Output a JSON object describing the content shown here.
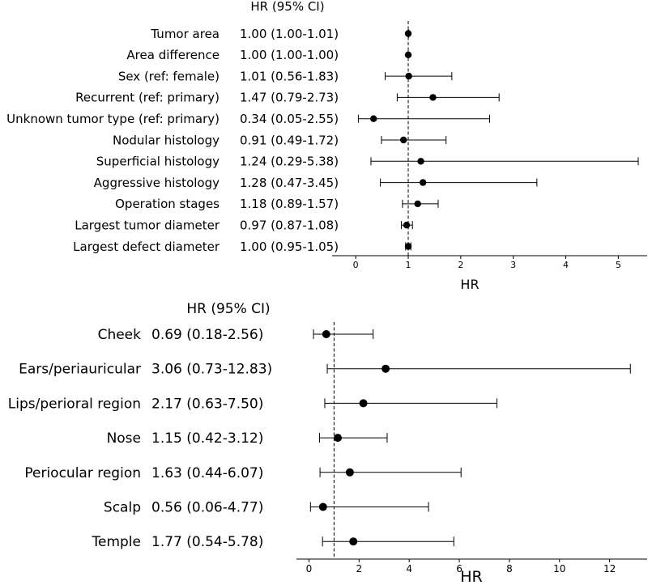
{
  "chart_data": [
    {
      "type": "forest",
      "title": "HR (95% CI)",
      "xlabel": "HR",
      "xlim": [
        -0.45,
        5.55
      ],
      "xticks": [
        0,
        1,
        2,
        3,
        4,
        5
      ],
      "reference_line": 1,
      "rows": [
        {
          "label": "Tumor area",
          "hr_text": "1.00 (1.00-1.01)",
          "hr": 1.0,
          "lo": 1.0,
          "hi": 1.01
        },
        {
          "label": "Area difference",
          "hr_text": "1.00 (1.00-1.00)",
          "hr": 1.0,
          "lo": 1.0,
          "hi": 1.0
        },
        {
          "label": "Sex (ref: female)",
          "hr_text": "1.01 (0.56-1.83)",
          "hr": 1.01,
          "lo": 0.56,
          "hi": 1.83
        },
        {
          "label": "Recurrent (ref: primary)",
          "hr_text": "1.47 (0.79-2.73)",
          "hr": 1.47,
          "lo": 0.79,
          "hi": 2.73
        },
        {
          "label": "Unknown tumor type (ref: primary)",
          "hr_text": "0.34 (0.05-2.55)",
          "hr": 0.34,
          "lo": 0.05,
          "hi": 2.55
        },
        {
          "label": "Nodular histology",
          "hr_text": "0.91 (0.49-1.72)",
          "hr": 0.91,
          "lo": 0.49,
          "hi": 1.72
        },
        {
          "label": "Superficial histology",
          "hr_text": "1.24 (0.29-5.38)",
          "hr": 1.24,
          "lo": 0.29,
          "hi": 5.38
        },
        {
          "label": "Aggressive histology",
          "hr_text": "1.28 (0.47-3.45)",
          "hr": 1.28,
          "lo": 0.47,
          "hi": 3.45
        },
        {
          "label": "Operation stages",
          "hr_text": "1.18 (0.89-1.57)",
          "hr": 1.18,
          "lo": 0.89,
          "hi": 1.57
        },
        {
          "label": "Largest tumor diameter",
          "hr_text": "0.97 (0.87-1.08)",
          "hr": 0.97,
          "lo": 0.87,
          "hi": 1.08
        },
        {
          "label": "Largest defect diameter",
          "hr_text": "1.00 (0.95-1.05)",
          "hr": 1.0,
          "lo": 0.95,
          "hi": 1.05
        }
      ]
    },
    {
      "type": "forest",
      "title": "HR (95% CI)",
      "xlabel": "HR",
      "xlim": [
        -0.5,
        13.5
      ],
      "xticks": [
        0,
        2,
        4,
        6,
        8,
        10,
        12
      ],
      "reference_line": 1,
      "rows": [
        {
          "label": "Cheek",
          "hr_text": "0.69 (0.18-2.56)",
          "hr": 0.69,
          "lo": 0.18,
          "hi": 2.56
        },
        {
          "label": "Ears/periauricular",
          "hr_text": "3.06 (0.73-12.83)",
          "hr": 3.06,
          "lo": 0.73,
          "hi": 12.83
        },
        {
          "label": "Lips/perioral region",
          "hr_text": "2.17 (0.63-7.50)",
          "hr": 2.17,
          "lo": 0.63,
          "hi": 7.5
        },
        {
          "label": "Nose",
          "hr_text": "1.15 (0.42-3.12)",
          "hr": 1.15,
          "lo": 0.42,
          "hi": 3.12
        },
        {
          "label": "Periocular region",
          "hr_text": "1.63 (0.44-6.07)",
          "hr": 1.63,
          "lo": 0.44,
          "hi": 6.07
        },
        {
          "label": "Scalp",
          "hr_text": "0.56 (0.06-4.77)",
          "hr": 0.56,
          "lo": 0.06,
          "hi": 4.77
        },
        {
          "label": "Temple",
          "hr_text": "1.77 (0.54-5.78)",
          "hr": 1.77,
          "lo": 0.54,
          "hi": 5.78
        }
      ]
    }
  ]
}
